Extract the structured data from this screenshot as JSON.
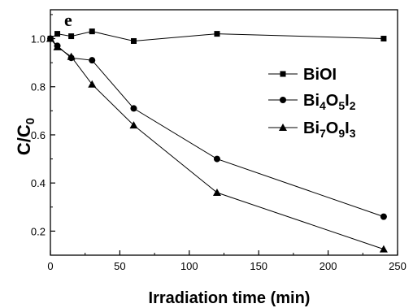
{
  "chart_data": {
    "type": "line",
    "panel_label": "e",
    "xlabel": "Irradiation time (min)",
    "ylabel_main": "C/C",
    "ylabel_sub": "0",
    "xlim": [
      0,
      250
    ],
    "ylim": [
      0.1,
      1.12
    ],
    "xticks": [
      0,
      50,
      100,
      150,
      200,
      250
    ],
    "yticks": [
      0.2,
      0.4,
      0.6,
      0.8,
      1.0
    ],
    "grid": false,
    "legend_position": "right",
    "series": [
      {
        "name": "BiOI",
        "name_parts": [
          {
            "t": "BiOI",
            "sub": false
          }
        ],
        "marker": "square",
        "x": [
          0,
          5,
          15,
          30,
          60,
          120,
          240
        ],
        "y": [
          1.0,
          1.02,
          1.01,
          1.03,
          0.99,
          1.02,
          1.0
        ]
      },
      {
        "name": "Bi4O5I2",
        "name_parts": [
          {
            "t": "Bi",
            "sub": false
          },
          {
            "t": "4",
            "sub": true
          },
          {
            "t": "O",
            "sub": false
          },
          {
            "t": "5",
            "sub": true
          },
          {
            "t": "I",
            "sub": false
          },
          {
            "t": "2",
            "sub": true
          }
        ],
        "marker": "circle",
        "x": [
          0,
          5,
          15,
          30,
          60,
          120,
          240
        ],
        "y": [
          1.0,
          0.97,
          0.92,
          0.91,
          0.71,
          0.5,
          0.26
        ]
      },
      {
        "name": "Bi7O9I3",
        "name_parts": [
          {
            "t": "Bi",
            "sub": false
          },
          {
            "t": "7",
            "sub": true
          },
          {
            "t": "O",
            "sub": false
          },
          {
            "t": "9",
            "sub": true
          },
          {
            "t": "I",
            "sub": false
          },
          {
            "t": "3",
            "sub": true
          }
        ],
        "marker": "triangle",
        "x": [
          0,
          5,
          15,
          30,
          60,
          120,
          240
        ],
        "y": [
          1.0,
          0.965,
          0.925,
          0.81,
          0.64,
          0.36,
          0.125
        ]
      }
    ]
  }
}
